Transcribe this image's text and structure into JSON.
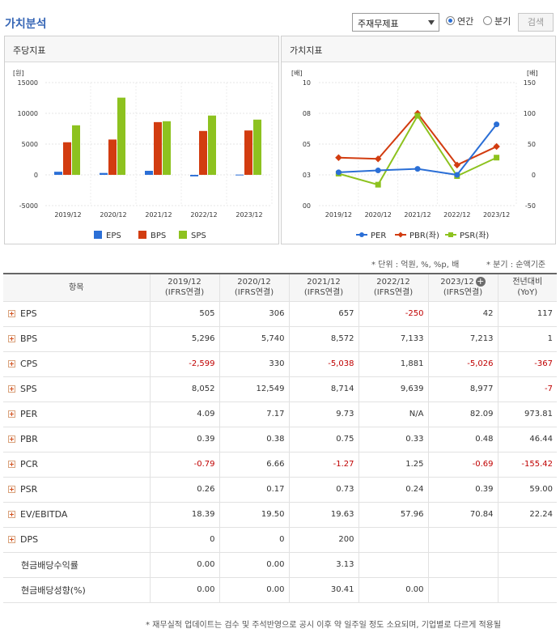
{
  "header": {
    "title": "가치분석",
    "select_value": "주재무제표",
    "radio_annual": "연간",
    "radio_quarter": "분기",
    "search_label": "검색"
  },
  "left_panel": {
    "title": "주당지표",
    "unit": "[원]",
    "legend": [
      "EPS",
      "BPS",
      "SPS"
    ]
  },
  "right_panel": {
    "title": "가치지표",
    "unit_left": "[배]",
    "unit_right": "[배]",
    "legend": [
      "PER",
      "PBR(좌)",
      "PSR(좌)"
    ]
  },
  "chart_data": [
    {
      "type": "bar",
      "title": "주당지표",
      "categories": [
        "2019/12",
        "2020/12",
        "2021/12",
        "2022/12",
        "2023/12"
      ],
      "series": [
        {
          "name": "EPS",
          "values": [
            505,
            306,
            657,
            -250,
            42
          ],
          "color": "#2b6fd6"
        },
        {
          "name": "BPS",
          "values": [
            5296,
            5740,
            8572,
            7133,
            7213
          ],
          "color": "#d23c10"
        },
        {
          "name": "SPS",
          "values": [
            8052,
            12549,
            8714,
            9639,
            8977
          ],
          "color": "#8dc21f"
        }
      ],
      "ylim": [
        -5000,
        15000
      ],
      "yticks": [
        "15000",
        "10000",
        "5000",
        "0",
        "-5000"
      ],
      "grid": true,
      "legend_position": "bottom"
    },
    {
      "type": "line",
      "title": "가치지표",
      "categories": [
        "2019/12",
        "2020/12",
        "2021/12",
        "2022/12",
        "2023/12"
      ],
      "series": [
        {
          "name": "PER",
          "values": [
            4.09,
            7.17,
            9.73,
            null,
            82.09
          ],
          "axis": "right",
          "color": "#2b6fd6"
        },
        {
          "name": "PBR(좌)",
          "values": [
            0.39,
            0.38,
            0.75,
            0.33,
            0.48
          ],
          "axis": "left",
          "color": "#d23c10"
        },
        {
          "name": "PSR(좌)",
          "values": [
            0.26,
            0.17,
            0.73,
            0.24,
            0.39
          ],
          "axis": "left",
          "color": "#8dc21f"
        }
      ],
      "ylim_left": [
        0,
        1.0
      ],
      "ylim_right": [
        -50,
        150
      ],
      "yticks_left": [
        "10",
        "08",
        "05",
        "03",
        "00"
      ],
      "yticks_right": [
        "150",
        "100",
        "50",
        "0",
        "-50"
      ],
      "grid": true,
      "legend_position": "bottom"
    }
  ],
  "notes": {
    "unit": "* 단위 : 억원, %, %p, 배",
    "quarter": "* 분기 : 순액기준"
  },
  "table": {
    "header_item": "항목",
    "columns": [
      {
        "period": "2019/12",
        "basis": "(IFRS연결)"
      },
      {
        "period": "2020/12",
        "basis": "(IFRS연결)"
      },
      {
        "period": "2021/12",
        "basis": "(IFRS연결)"
      },
      {
        "period": "2022/12",
        "basis": "(IFRS연결)"
      },
      {
        "period": "2023/12",
        "basis": "(IFRS연결)"
      },
      {
        "period": "전년대비",
        "basis": "(YoY)"
      }
    ],
    "rows": [
      {
        "label": "EPS",
        "values": [
          "505",
          "306",
          "657",
          "-250",
          "42",
          "117"
        ]
      },
      {
        "label": "BPS",
        "values": [
          "5,296",
          "5,740",
          "8,572",
          "7,133",
          "7,213",
          "1"
        ]
      },
      {
        "label": "CPS",
        "values": [
          "-2,599",
          "330",
          "-5,038",
          "1,881",
          "-5,026",
          "-367"
        ]
      },
      {
        "label": "SPS",
        "values": [
          "8,052",
          "12,549",
          "8,714",
          "9,639",
          "8,977",
          "-7"
        ]
      },
      {
        "label": "PER",
        "values": [
          "4.09",
          "7.17",
          "9.73",
          "N/A",
          "82.09",
          "973.81"
        ]
      },
      {
        "label": "PBR",
        "values": [
          "0.39",
          "0.38",
          "0.75",
          "0.33",
          "0.48",
          "46.44"
        ]
      },
      {
        "label": "PCR",
        "values": [
          "-0.79",
          "6.66",
          "-1.27",
          "1.25",
          "-0.69",
          "-155.42"
        ]
      },
      {
        "label": "PSR",
        "values": [
          "0.26",
          "0.17",
          "0.73",
          "0.24",
          "0.39",
          "59.00"
        ]
      },
      {
        "label": "EV/EBITDA",
        "values": [
          "18.39",
          "19.50",
          "19.63",
          "57.96",
          "70.84",
          "22.24"
        ]
      },
      {
        "label": "DPS",
        "values": [
          "0",
          "0",
          "200",
          "",
          "",
          ""
        ]
      },
      {
        "label": "현금배당수익률",
        "values": [
          "0.00",
          "0.00",
          "3.13",
          "",
          "",
          ""
        ]
      },
      {
        "label": "현금배당성향(%)",
        "values": [
          "0.00",
          "0.00",
          "30.41",
          "0.00",
          "",
          ""
        ]
      }
    ]
  },
  "footnote": "* 재무실적 업데이트는 검수 및 주석반영으로 공시 이후 약 일주일 정도 소요되며, 기업별로 다르게 적용될"
}
